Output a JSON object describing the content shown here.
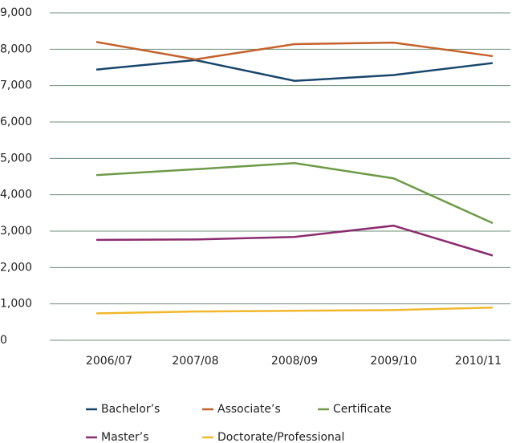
{
  "chart_data": {
    "type": "line",
    "categories": [
      "2006/07",
      "2007/08",
      "2008/09",
      "2009/10",
      "2010/11"
    ],
    "series": [
      {
        "name": "Bachelor’s",
        "color": "#17456b",
        "values": [
          7440,
          7700,
          7130,
          7290,
          7620
        ]
      },
      {
        "name": "Associate’s",
        "color": "#c4612b",
        "values": [
          8200,
          7720,
          8140,
          8180,
          7810
        ]
      },
      {
        "name": "Certificate",
        "color": "#6c9a46",
        "values": [
          4540,
          4700,
          4870,
          4450,
          3220
        ]
      },
      {
        "name": "Master’s",
        "color": "#8b2c6f",
        "values": [
          2760,
          2770,
          2840,
          3150,
          2330
        ]
      },
      {
        "name": "Doctorate/Professional",
        "color": "#f1b82d",
        "values": [
          740,
          790,
          810,
          830,
          900
        ]
      }
    ],
    "ylim": [
      0,
      9000
    ],
    "yticks": [
      0,
      {
        "value": 1000,
        "label": "1,000"
      },
      {
        "value": 2000,
        "label": "2,000"
      },
      {
        "value": 3000,
        "label": "3,000"
      },
      {
        "value": 4000,
        "label": "4,000"
      },
      {
        "value": 5000,
        "label": "5,000"
      },
      {
        "value": 6000,
        "label": "6,000"
      },
      {
        "value": 7000,
        "label": "7,000"
      },
      {
        "value": 8000,
        "label": "8,000"
      },
      {
        "value": 9000,
        "label": "9,000"
      }
    ],
    "grid": true
  }
}
